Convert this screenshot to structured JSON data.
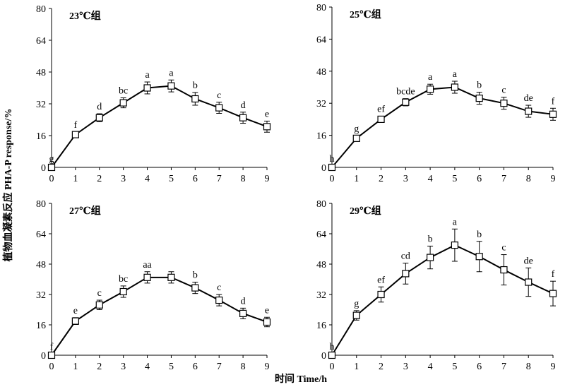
{
  "figure": {
    "ylabel": "植物血凝素反应 PHA-P response/%",
    "xlabel": "时间 Time/h"
  },
  "chart_data": [
    {
      "type": "line",
      "title": "23℃组",
      "x": [
        0,
        1,
        2,
        3,
        4,
        5,
        6,
        7,
        8,
        9
      ],
      "values": [
        0,
        16.5,
        25,
        32.5,
        40,
        41,
        34.5,
        30,
        25,
        20.5
      ],
      "errors": [
        0,
        1.2,
        2,
        2.5,
        3,
        3,
        3.2,
        2.8,
        2.8,
        2.8
      ],
      "letters": [
        "g",
        "f",
        "d",
        "bc",
        "a",
        "a",
        "b",
        "c",
        "d",
        "e"
      ],
      "xlim": [
        0,
        9
      ],
      "ylim": [
        0,
        80
      ],
      "yticks": [
        0,
        16,
        32,
        48,
        64,
        80
      ],
      "xticks": [
        0,
        1,
        2,
        3,
        4,
        5,
        6,
        7,
        8,
        9
      ],
      "grid": false
    },
    {
      "type": "line",
      "title": "25℃组",
      "x": [
        0,
        1,
        2,
        3,
        4,
        5,
        6,
        7,
        8,
        9
      ],
      "values": [
        0,
        14.5,
        24,
        32.5,
        39,
        40,
        34.5,
        32,
        28,
        26.5
      ],
      "errors": [
        0,
        1.2,
        1.5,
        1.8,
        2.5,
        3,
        3,
        3,
        3,
        3
      ],
      "letters": [
        "h",
        "g",
        "ef",
        "bcde",
        "a",
        "a",
        "b",
        "c",
        "de",
        "f"
      ],
      "xlim": [
        0,
        9
      ],
      "ylim": [
        0,
        80
      ],
      "yticks": [
        0,
        16,
        32,
        48,
        64,
        80
      ],
      "xticks": [
        0,
        1,
        2,
        3,
        4,
        5,
        6,
        7,
        8,
        9
      ],
      "grid": false
    },
    {
      "type": "line",
      "title": "27℃组",
      "x": [
        0,
        1,
        2,
        3,
        4,
        5,
        6,
        7,
        8,
        9
      ],
      "values": [
        0,
        18,
        26.5,
        33.5,
        41,
        41,
        35.5,
        29,
        22,
        17.5
      ],
      "errors": [
        0,
        1.8,
        2.5,
        3,
        3,
        3,
        3,
        3,
        2.8,
        2.5
      ],
      "letters": [
        "f",
        "e",
        "c",
        "bc",
        "aa",
        "",
        "b",
        "c",
        "d",
        "e"
      ],
      "xlim": [
        0,
        9
      ],
      "ylim": [
        0,
        80
      ],
      "yticks": [
        0,
        16,
        32,
        48,
        64,
        80
      ],
      "xticks": [
        0,
        1,
        2,
        3,
        4,
        5,
        6,
        7,
        8,
        9
      ],
      "grid": false
    },
    {
      "type": "line",
      "title": "29℃组",
      "x": [
        0,
        1,
        2,
        3,
        4,
        5,
        6,
        7,
        8,
        9
      ],
      "values": [
        0,
        21,
        32,
        43,
        51.5,
        58,
        52,
        45,
        38.5,
        32.5
      ],
      "errors": [
        0,
        2.5,
        4,
        5.5,
        6,
        8.5,
        8,
        8,
        7.5,
        6.5
      ],
      "letters": [
        "h",
        "g",
        "ef",
        "cd",
        "b",
        "a",
        "b",
        "c",
        "de",
        "f"
      ],
      "xlim": [
        0,
        9
      ],
      "ylim": [
        0,
        80
      ],
      "yticks": [
        0,
        16,
        32,
        48,
        64,
        80
      ],
      "xticks": [
        0,
        1,
        2,
        3,
        4,
        5,
        6,
        7,
        8,
        9
      ],
      "grid": false
    }
  ]
}
